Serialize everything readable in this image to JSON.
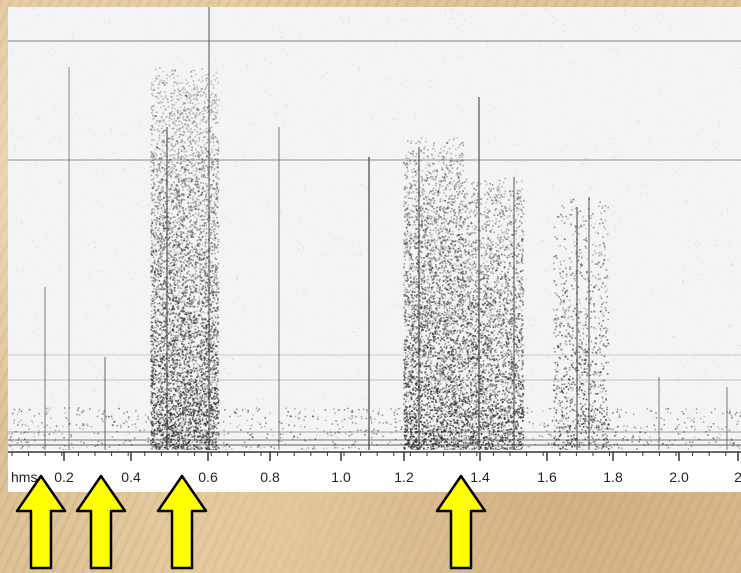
{
  "axis": {
    "unit": "hms",
    "ticks": [
      "0.2",
      "0.4",
      "0.6",
      "0.8",
      "1.0",
      "1.2",
      "1.4",
      "1.6",
      "1.8",
      "2.0",
      "2"
    ]
  },
  "arrows": [
    {
      "time_hms": 0.06
    },
    {
      "time_hms": 0.27
    },
    {
      "time_hms": 0.53
    },
    {
      "time_hms": 1.35
    }
  ],
  "colors": {
    "arrow_fill": "#ffff00",
    "arrow_stroke": "#000000",
    "spectrogram_ink": "#2a2a2a",
    "background": "#dcc196"
  }
}
